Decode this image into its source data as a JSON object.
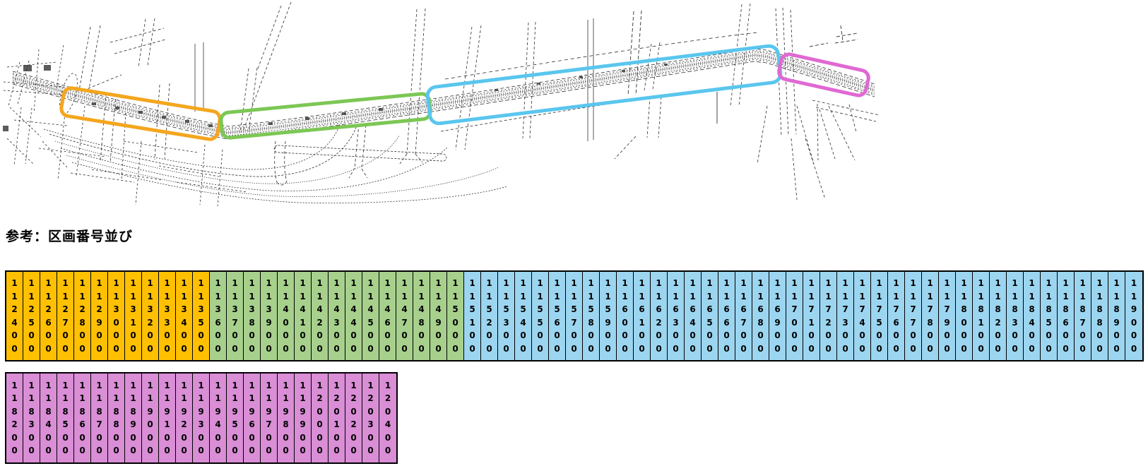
{
  "title": "参考：区画番号並び",
  "map": {
    "description": "road-survey-line-drawing",
    "highlights": [
      {
        "name": "highlight-orange",
        "color": "#F4A61E"
      },
      {
        "name": "highlight-green",
        "color": "#7CC755"
      },
      {
        "name": "highlight-blue",
        "color": "#5AC6EE"
      },
      {
        "name": "highlight-pink",
        "color": "#E069D3"
      }
    ]
  },
  "grid": {
    "row1": {
      "groups": [
        {
          "name": "orange",
          "fill": "#FFC002",
          "values": [
            "112400",
            "112500",
            "112600",
            "112700",
            "112800",
            "112900",
            "113000",
            "113100",
            "113200",
            "113300",
            "113400",
            "113500"
          ]
        },
        {
          "name": "green",
          "fill": "#A7D08D",
          "values": [
            "113600",
            "113700",
            "113800",
            "113900",
            "114000",
            "114100",
            "114200",
            "114300",
            "114400",
            "114500",
            "114600",
            "114700",
            "114800",
            "114900",
            "115000"
          ]
        },
        {
          "name": "blue",
          "fill": "#9CD5F0",
          "values": [
            "115100",
            "115200",
            "115300",
            "115400",
            "115500",
            "115600",
            "115700",
            "115800",
            "115900",
            "116000",
            "116100",
            "116200",
            "116300",
            "116400",
            "116500",
            "116600",
            "116700",
            "116800",
            "116900",
            "117000",
            "117100",
            "117200",
            "117300",
            "117400",
            "117500",
            "117600",
            "117700",
            "117800",
            "117900",
            "118000",
            "118100",
            "118200",
            "118300",
            "118400",
            "118500",
            "118600",
            "118700",
            "118800",
            "118900",
            "119000"
          ]
        }
      ]
    },
    "row2": {
      "groups": [
        {
          "name": "purple",
          "fill": "#D98ED6",
          "values": [
            "118200",
            "118300",
            "118400",
            "118500",
            "118600",
            "118700",
            "118800",
            "118900",
            "119000",
            "119100",
            "119200",
            "119300",
            "119400",
            "119500",
            "119600",
            "119700",
            "119800",
            "119900",
            "120000",
            "120100",
            "120200",
            "120300",
            "120400"
          ]
        }
      ]
    }
  }
}
